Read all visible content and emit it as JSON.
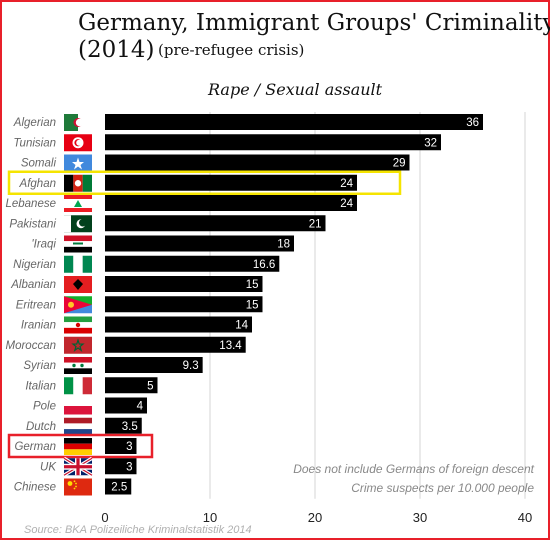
{
  "header": {
    "title_line1": "Germany, Immigrant Groups' Criminality",
    "title_line2": "(2014)",
    "subtitle": "(pre-refugee crisis)"
  },
  "chart_data": {
    "type": "bar",
    "orientation": "horizontal",
    "title": "Rape / Sexual assault",
    "categories": [
      "Algerian",
      "Tunisian",
      "Somali",
      "Afghan",
      "Lebanese",
      "Pakistani",
      "'Iraqi",
      "Nigerian",
      "Albanian",
      "Eritrean",
      "Iranian",
      "Moroccan",
      "Syrian",
      "Italian",
      "Pole",
      "Dutch",
      "German",
      "UK",
      "Chinese"
    ],
    "values": [
      36,
      32,
      29,
      24,
      24,
      21,
      18,
      16.6,
      15,
      15,
      14,
      13.4,
      9.3,
      5,
      4,
      3.5,
      3,
      3,
      2.5
    ],
    "value_labels": [
      "36",
      "32",
      "29",
      "24",
      "24",
      "21",
      "18",
      "16.6",
      "15",
      "15",
      "14",
      "13.4",
      "9.3",
      "5",
      "4",
      "3.5",
      "3",
      "3",
      "2.5"
    ],
    "xlim": [
      0,
      40
    ],
    "xticks": [
      "0",
      "10",
      "20",
      "30",
      "40"
    ],
    "grid": "vertical",
    "bar_color": "#000000",
    "highlights": [
      {
        "category": "Afghan",
        "color": "#f5e400"
      },
      {
        "category": "German",
        "color": "#e8202a"
      }
    ],
    "annotations": [
      "Does not include Germans of foreign descent",
      "Crime suspects per 10.000 people"
    ],
    "source": "Source: BKA Polizeiliche Kriminalstatistik 2014"
  },
  "flags": [
    "algeria-flag-icon",
    "tunisia-flag-icon",
    "somalia-flag-icon",
    "afghanistan-flag-icon",
    "lebanon-flag-icon",
    "pakistan-flag-icon",
    "iraq-flag-icon",
    "nigeria-flag-icon",
    "albania-flag-icon",
    "eritrea-flag-icon",
    "iran-flag-icon",
    "morocco-flag-icon",
    "syria-flag-icon",
    "italy-flag-icon",
    "poland-flag-icon",
    "netherlands-flag-icon",
    "germany-flag-icon",
    "uk-flag-icon",
    "china-flag-icon"
  ]
}
